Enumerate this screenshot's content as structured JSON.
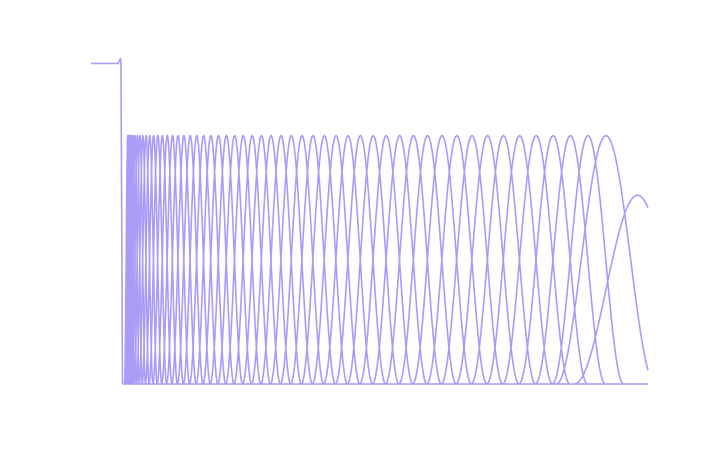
{
  "chart_data": {
    "type": "line",
    "title": "",
    "xlabel": "",
    "ylabel": "",
    "grid": false,
    "legend": "none",
    "line_color": "#a89cf7",
    "background": "#ffffff",
    "xlim": [
      -0.06,
      1.0
    ],
    "ylim": [
      0.0,
      1.32
    ],
    "series": [
      {
        "kind": "step",
        "x": [
          -0.06,
          -0.012,
          -0.008,
          -0.004,
          -0.003,
          0.0
        ],
        "y": [
          1.29,
          1.29,
          1.29,
          1.31,
          1.29,
          0.0
        ]
      },
      {
        "kind": "b-spline-basis",
        "count": 56,
        "peak": 1.0,
        "last_peak": 0.76,
        "last_peak_x": 0.98,
        "knot_spacing": "increasing",
        "clipped_at_x": 1.0
      }
    ]
  }
}
